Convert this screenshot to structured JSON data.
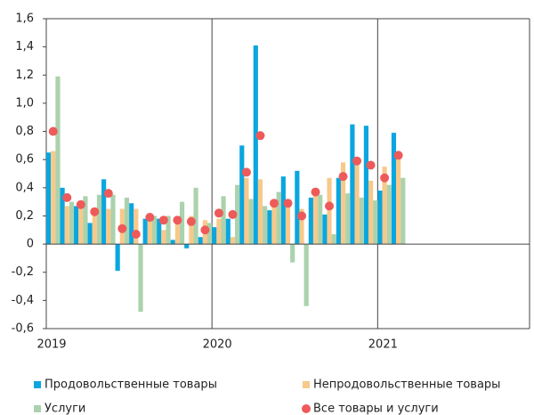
{
  "chart_data": {
    "type": "bar",
    "categories": [
      "2019",
      null,
      null,
      null,
      null,
      null,
      null,
      null,
      null,
      null,
      null,
      null,
      "2020",
      null,
      null,
      null,
      null,
      null,
      null,
      null,
      null,
      null,
      null,
      null,
      "2021",
      null,
      null,
      null,
      null,
      null,
      null,
      null,
      null,
      null,
      null
    ],
    "series": [
      {
        "name": "Продовольственные товары",
        "color": "#0aa6df",
        "values": [
          0.65,
          0.4,
          0.27,
          0.15,
          0.46,
          -0.19,
          0.29,
          0.18,
          0.18,
          0.03,
          -0.03,
          0.05,
          0.12,
          0.18,
          0.7,
          1.41,
          0.24,
          0.48,
          0.52,
          0.33,
          0.21,
          0.47,
          0.85,
          0.84,
          0.38,
          0.79,
          null,
          null,
          null,
          null,
          null,
          null,
          null,
          null,
          null
        ]
      },
      {
        "name": "Непродовольственные товары",
        "color": "#f8c98a",
        "values": [
          0.66,
          0.27,
          0.25,
          0.22,
          0.25,
          0.25,
          0.25,
          0.2,
          0.1,
          0.18,
          0.2,
          0.17,
          0.18,
          0.05,
          0.47,
          0.46,
          0.3,
          0.3,
          0.25,
          0.36,
          0.47,
          0.58,
          0.56,
          0.45,
          0.55,
          0.64,
          null,
          null,
          null,
          null,
          null,
          null,
          null,
          null,
          null
        ]
      },
      {
        "name": "Услуги",
        "color": "#abd2ad",
        "values": [
          1.19,
          0.3,
          0.34,
          0.35,
          0.35,
          0.33,
          -0.48,
          0.2,
          0.2,
          0.3,
          0.4,
          0.15,
          0.34,
          0.42,
          0.32,
          0.27,
          0.37,
          -0.13,
          -0.44,
          0.35,
          0.07,
          0.36,
          0.33,
          0.31,
          0.42,
          0.47,
          null,
          null,
          null,
          null,
          null,
          null,
          null,
          null,
          null
        ]
      },
      {
        "name": "Все товары и услуги",
        "color": "#ee5a5a",
        "type": "dot",
        "values": [
          0.8,
          0.33,
          0.28,
          0.23,
          0.36,
          0.11,
          0.07,
          0.19,
          0.17,
          0.17,
          0.16,
          0.1,
          0.22,
          0.21,
          0.51,
          0.77,
          0.29,
          0.29,
          0.2,
          0.37,
          0.27,
          0.48,
          0.59,
          0.56,
          0.47,
          0.63,
          null,
          null,
          null,
          null,
          null,
          null,
          null,
          null,
          null
        ]
      }
    ],
    "ylim": [
      -0.6,
      1.6
    ],
    "yticks": [
      {
        "value": -0.6,
        "label": "-0,6"
      },
      {
        "value": -0.4,
        "label": "-0,4"
      },
      {
        "value": -0.2,
        "label": "-0,2"
      },
      0,
      {
        "value": 0.2,
        "label": "0,2"
      },
      {
        "value": 0.4,
        "label": "0,4"
      },
      {
        "value": 0.6,
        "label": "0,6"
      },
      {
        "value": 0.8,
        "label": "0,8"
      },
      {
        "value": 1.0,
        "label": "1,0"
      },
      {
        "value": 1.2,
        "label": "1,2"
      },
      {
        "value": 1.4,
        "label": "1,4"
      },
      {
        "value": 1.6,
        "label": "1,6"
      }
    ],
    "grid": false
  }
}
